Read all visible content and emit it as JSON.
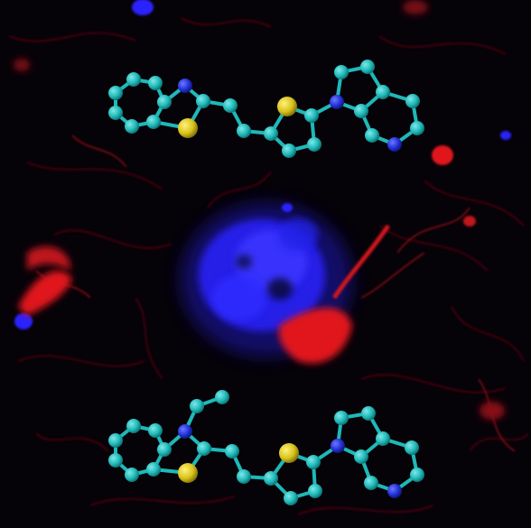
{
  "image": {
    "kind": "fluorescence micrograph with overlaid ball-and-stick molecular models",
    "channel_colors": {
      "tau_tangles": "#e0141e",
      "amyloid_plaque": "#2a24ff",
      "background": "#050208"
    },
    "atom_colors": {
      "carbon": "#1fb8b8",
      "sulfur": "#d8c21c",
      "nitrogen": "#2330d8",
      "bond": "#1fb8b8"
    }
  }
}
